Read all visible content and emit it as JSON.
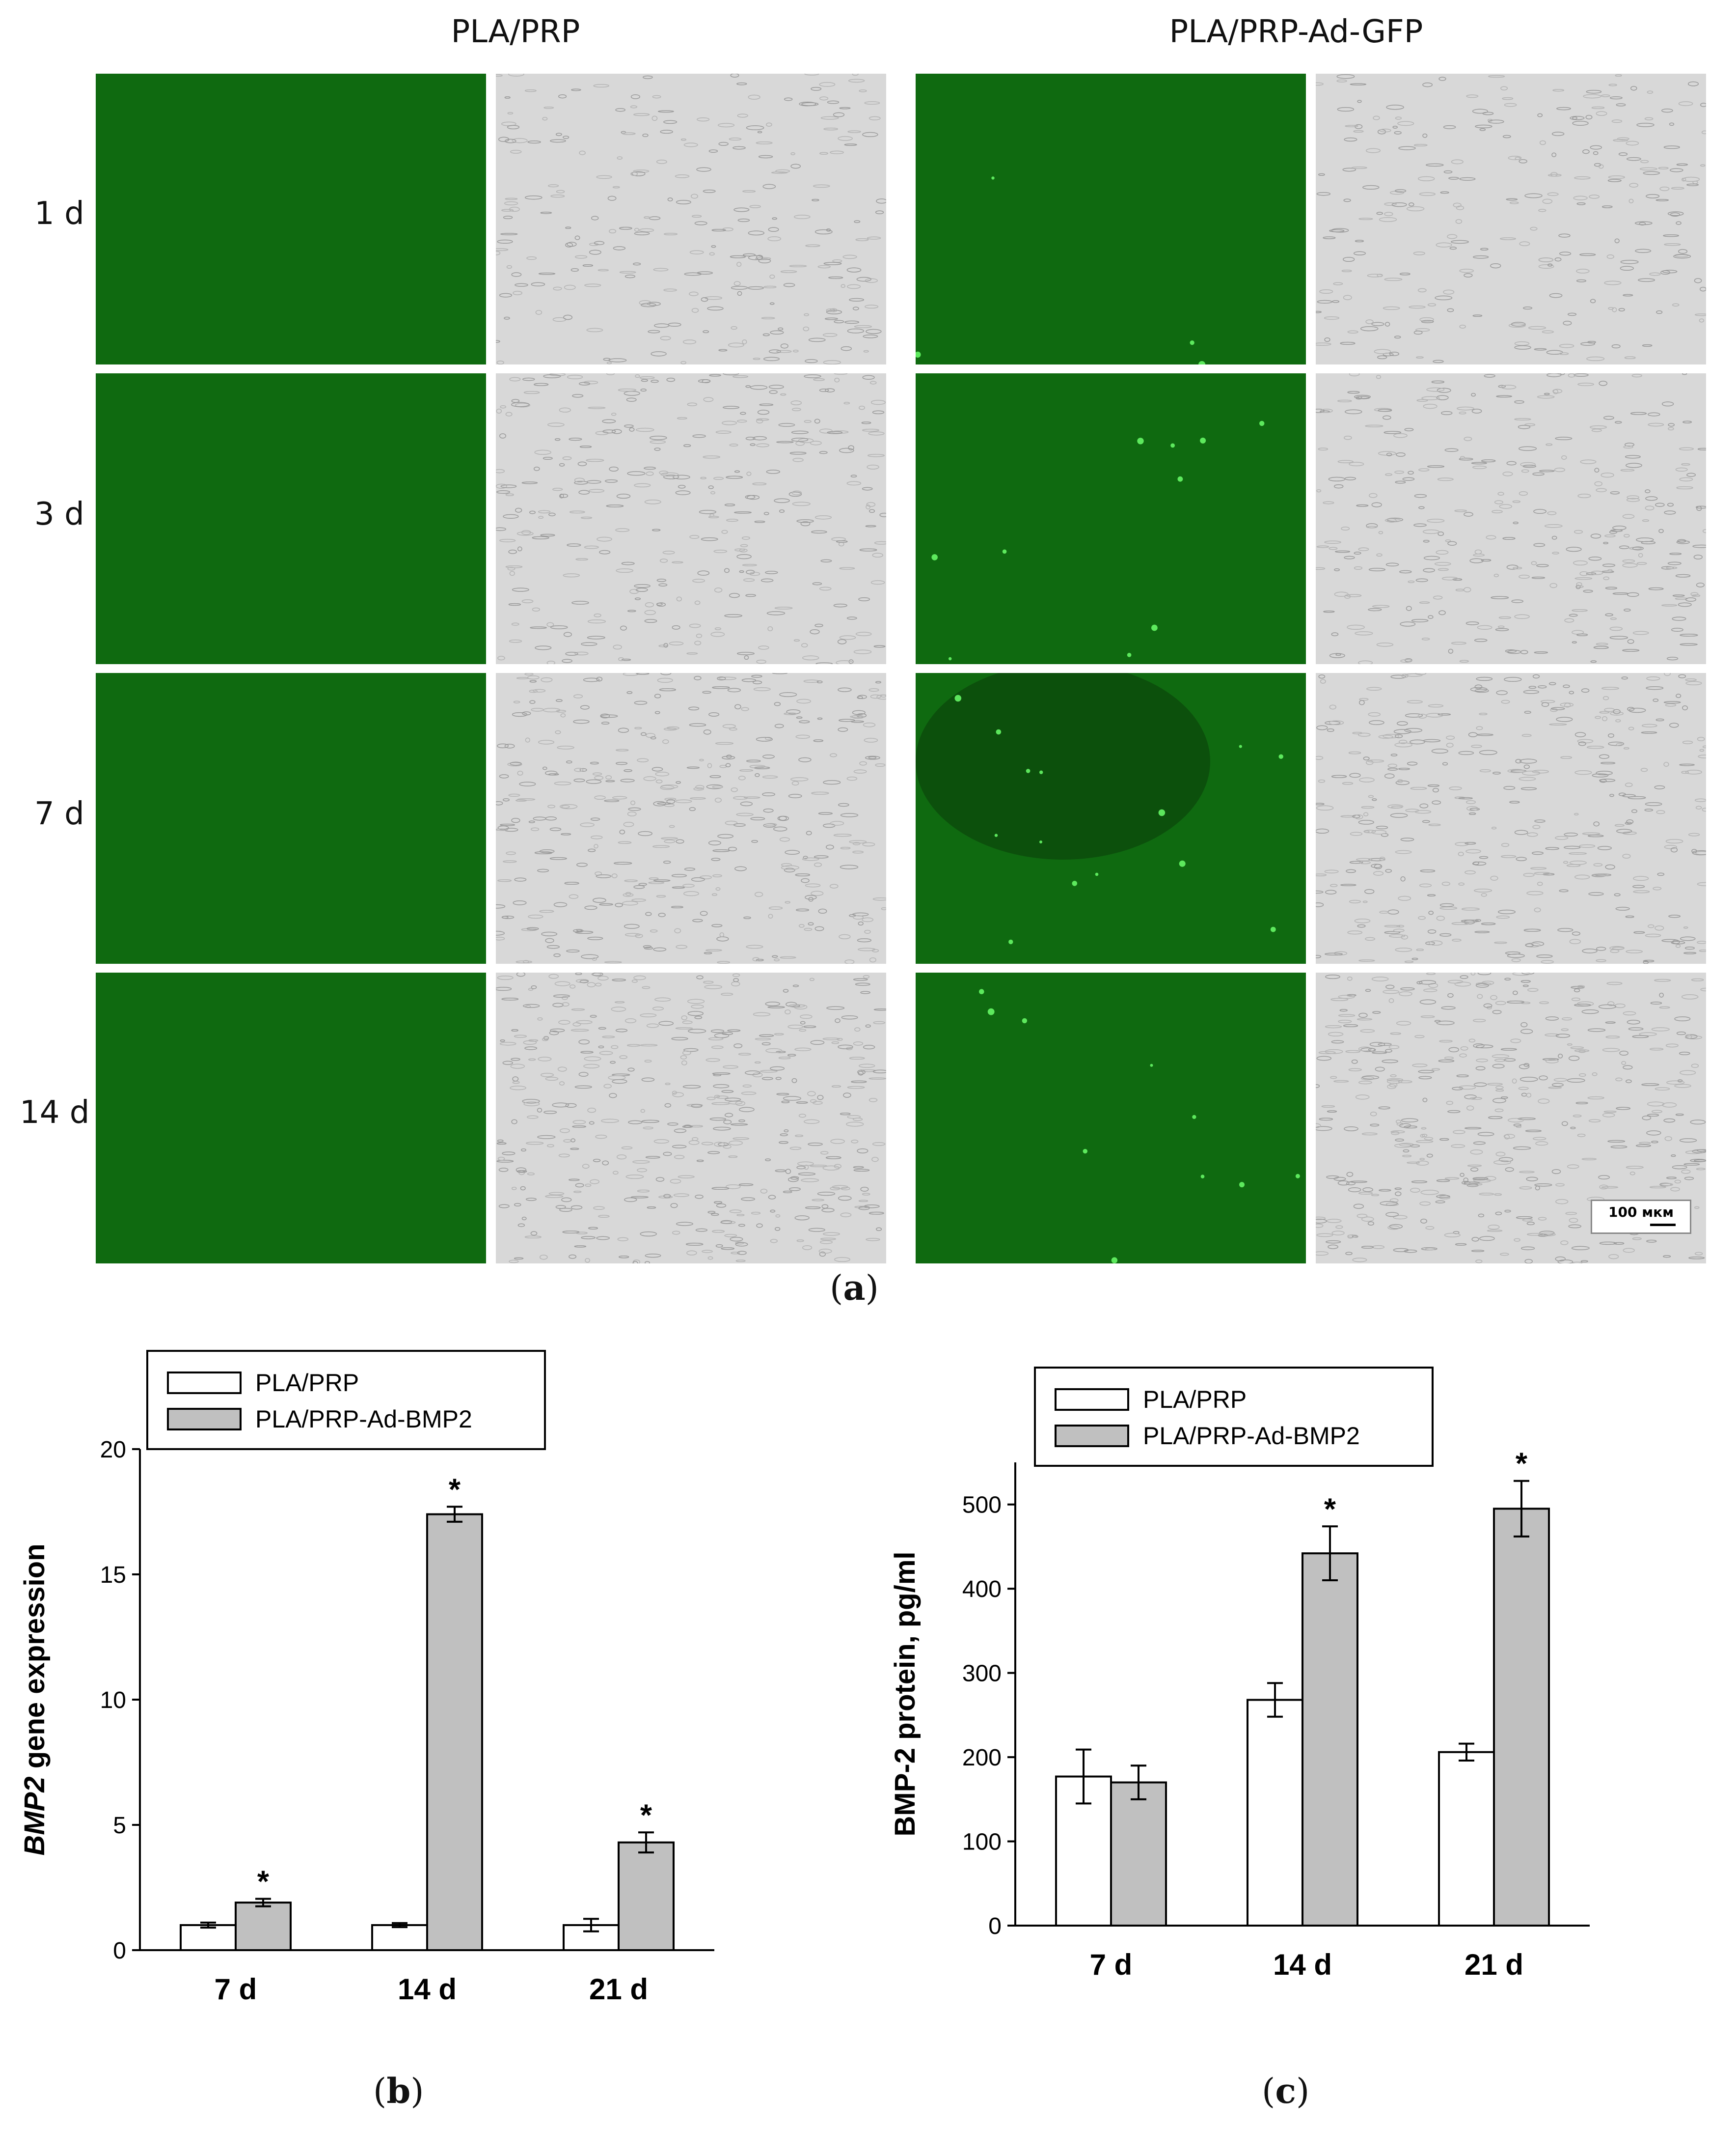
{
  "figure_a": {
    "column_titles": [
      "PLA/PRP",
      "PLA/PRP-Ad-GFP"
    ],
    "row_labels": [
      "1 d",
      "3 d",
      "7 d",
      "14 d"
    ],
    "scale_bar_label": "100 мкм",
    "panel_label": "a",
    "colors": {
      "fluorescence": "#0f6a10",
      "brightfield": "#d8d8d8"
    }
  },
  "figure_b": {
    "panel_label": "b"
  },
  "figure_c": {
    "panel_label": "c"
  },
  "chart_data": [
    {
      "type": "bar",
      "ylabel_italic": "BMP2",
      "ylabel_rest": " gene expression",
      "categories": [
        "7 d",
        "14 d",
        "21 d"
      ],
      "ylim": [
        0,
        20
      ],
      "yticks": [
        0,
        5,
        10,
        15,
        20
      ],
      "legend": "top-left",
      "series": [
        {
          "name": "PLA/PRP",
          "color": "#ffffff",
          "values": [
            1.0,
            1.0,
            1.0
          ],
          "errors": [
            0.1,
            0.08,
            0.25
          ]
        },
        {
          "name": "PLA/PRP-Ad-BMP2",
          "color": "#c0c0c0",
          "values": [
            1.9,
            17.4,
            4.3
          ],
          "errors": [
            0.15,
            0.3,
            0.4
          ]
        }
      ],
      "annotations": [
        {
          "series": 1,
          "category": 0,
          "text": "*"
        },
        {
          "series": 1,
          "category": 1,
          "text": "*"
        },
        {
          "series": 1,
          "category": 2,
          "text": "*"
        }
      ]
    },
    {
      "type": "bar",
      "ylabel": "BMP-2 protein, pg/ml",
      "categories": [
        "7 d",
        "14 d",
        "21 d"
      ],
      "ylim": [
        0,
        550
      ],
      "yticks": [
        0,
        100,
        200,
        300,
        400,
        500
      ],
      "legend": "top-left",
      "series": [
        {
          "name": "PLA/PRP",
          "color": "#ffffff",
          "values": [
            177,
            268,
            206
          ],
          "errors": [
            32,
            20,
            10
          ]
        },
        {
          "name": "PLA/PRP-Ad-BMP2",
          "color": "#c0c0c0",
          "values": [
            170,
            442,
            495
          ],
          "errors": [
            20,
            32,
            33
          ]
        }
      ],
      "annotations": [
        {
          "series": 1,
          "category": 1,
          "text": "*"
        },
        {
          "series": 1,
          "category": 2,
          "text": "*"
        }
      ]
    }
  ]
}
